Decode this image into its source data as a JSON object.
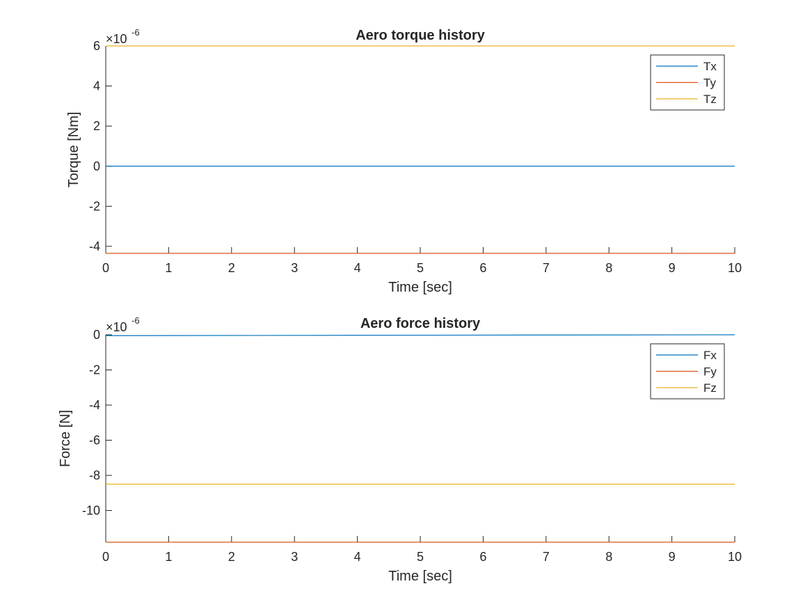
{
  "chart_data": [
    {
      "type": "line",
      "title": "Aero torque history",
      "xlabel": "Time [sec]",
      "ylabel": "Torque [Nm]",
      "y_exponent_label": "×10",
      "y_exponent": "-6",
      "xlim": [
        0,
        10
      ],
      "ylim": [
        -4.35,
        6.0
      ],
      "xticks": [
        0,
        1,
        2,
        3,
        4,
        5,
        6,
        7,
        8,
        9,
        10
      ],
      "yticks": [
        -4,
        -2,
        0,
        2,
        4,
        6
      ],
      "grid": false,
      "legend_position": "top-right",
      "x": [
        0,
        10
      ],
      "series": [
        {
          "name": "Tx",
          "color": "#0072BD",
          "values": [
            0,
            0
          ]
        },
        {
          "name": "Ty",
          "color": "#D95319",
          "values": [
            -4.35,
            -4.35
          ]
        },
        {
          "name": "Tz",
          "color": "#EDB120",
          "values": [
            6.0,
            6.0
          ]
        }
      ]
    },
    {
      "type": "line",
      "title": "Aero force history",
      "xlabel": "Time [sec]",
      "ylabel": "Force [N]",
      "y_exponent_label": "×10",
      "y_exponent": "-6",
      "xlim": [
        0,
        10
      ],
      "ylim": [
        -11.8,
        0
      ],
      "xticks": [
        0,
        1,
        2,
        3,
        4,
        5,
        6,
        7,
        8,
        9,
        10
      ],
      "yticks": [
        -10,
        -8,
        -6,
        -4,
        -2,
        0
      ],
      "grid": false,
      "legend_position": "top-right",
      "x": [
        0,
        10
      ],
      "series": [
        {
          "name": "Fx",
          "color": "#0072BD",
          "values": [
            -0.05,
            0
          ]
        },
        {
          "name": "Fy",
          "color": "#D95319",
          "values": [
            -11.8,
            -11.8
          ]
        },
        {
          "name": "Fz",
          "color": "#EDB120",
          "values": [
            -8.5,
            -8.5
          ]
        }
      ]
    }
  ]
}
